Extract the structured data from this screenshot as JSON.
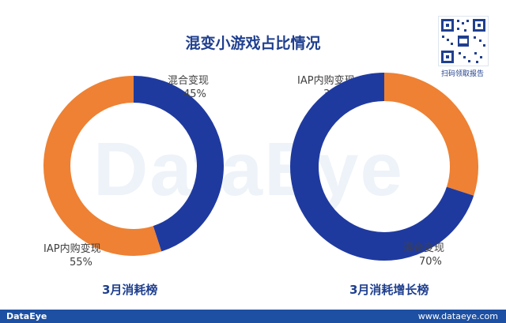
{
  "title": "混变小游戏占比情况",
  "watermark": "DataEye",
  "qr_caption": "扫码领取报告",
  "footer": {
    "logo": "DataEye",
    "url": "www.dataeye.com"
  },
  "colors": {
    "hybrid": "#1f3a9f",
    "iap": "#ee8133",
    "title": "#1f3f8f"
  },
  "chart_data": [
    {
      "type": "pie",
      "subtitle": "3月消耗榜",
      "slices": [
        {
          "label": "混合变现",
          "value": 45,
          "display": "45%"
        },
        {
          "label": "IAP内购变现",
          "value": 55,
          "display": "55%"
        }
      ]
    },
    {
      "type": "pie",
      "subtitle": "3月消耗增长榜",
      "slices": [
        {
          "label": "IAP内购变现",
          "value": 30,
          "display": "30%"
        },
        {
          "label": "混合变现",
          "value": 70,
          "display": "70%"
        }
      ]
    }
  ]
}
